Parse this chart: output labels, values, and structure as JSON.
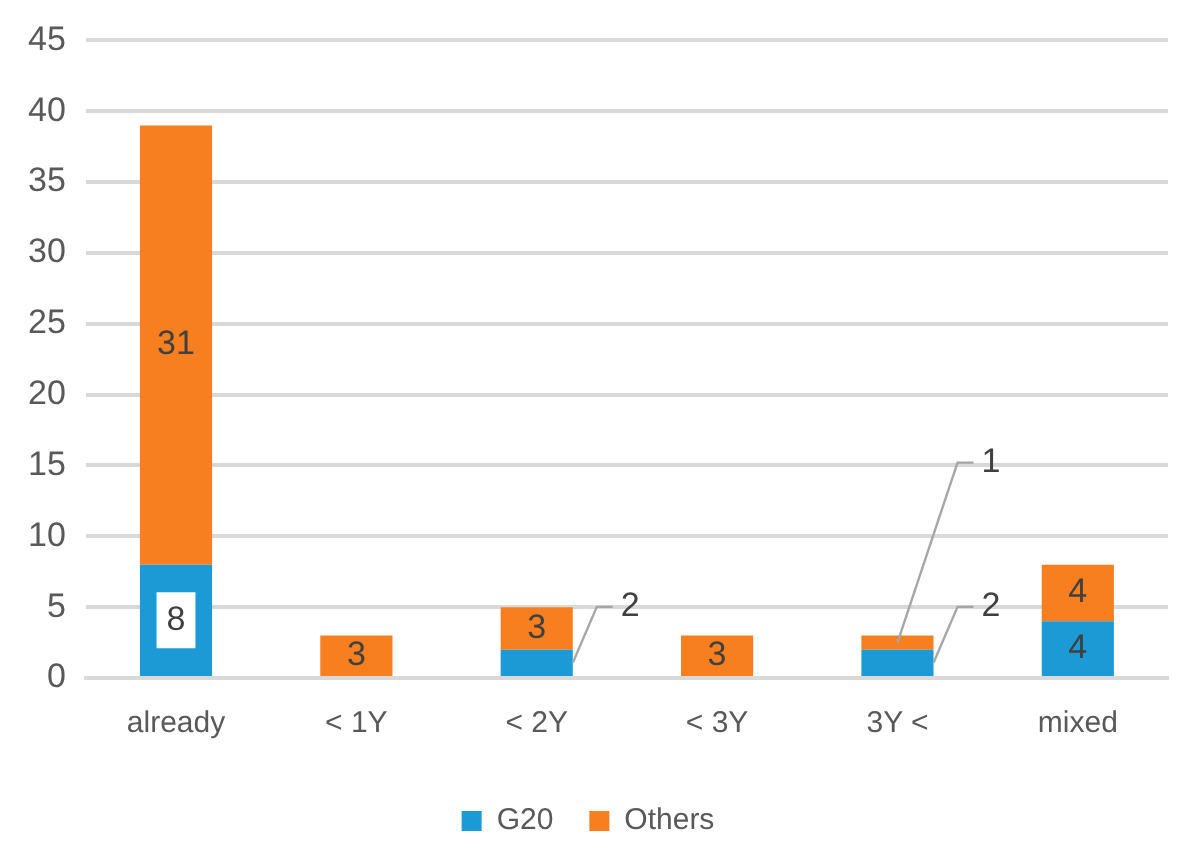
{
  "chart_data": {
    "type": "bar",
    "stacked": true,
    "categories": [
      "already",
      "< 1Y",
      "< 2Y",
      "< 3Y",
      "3Y <",
      "mixed"
    ],
    "series": [
      {
        "name": "G20",
        "color": "#1b9ad6",
        "values": [
          8,
          0,
          2,
          0,
          2,
          4
        ],
        "value_labels": [
          "8",
          null,
          "2",
          null,
          "2",
          "4"
        ]
      },
      {
        "name": "Others",
        "color": "#f77f1f",
        "values": [
          31,
          3,
          3,
          3,
          1,
          4
        ],
        "value_labels": [
          "31",
          "3",
          "3",
          "3",
          "1",
          "4"
        ]
      }
    ],
    "ylim": [
      0,
      45
    ],
    "yticks": [
      0,
      5,
      10,
      15,
      20,
      25,
      30,
      35,
      40,
      45
    ],
    "grid": "y",
    "legend": "bottom"
  }
}
